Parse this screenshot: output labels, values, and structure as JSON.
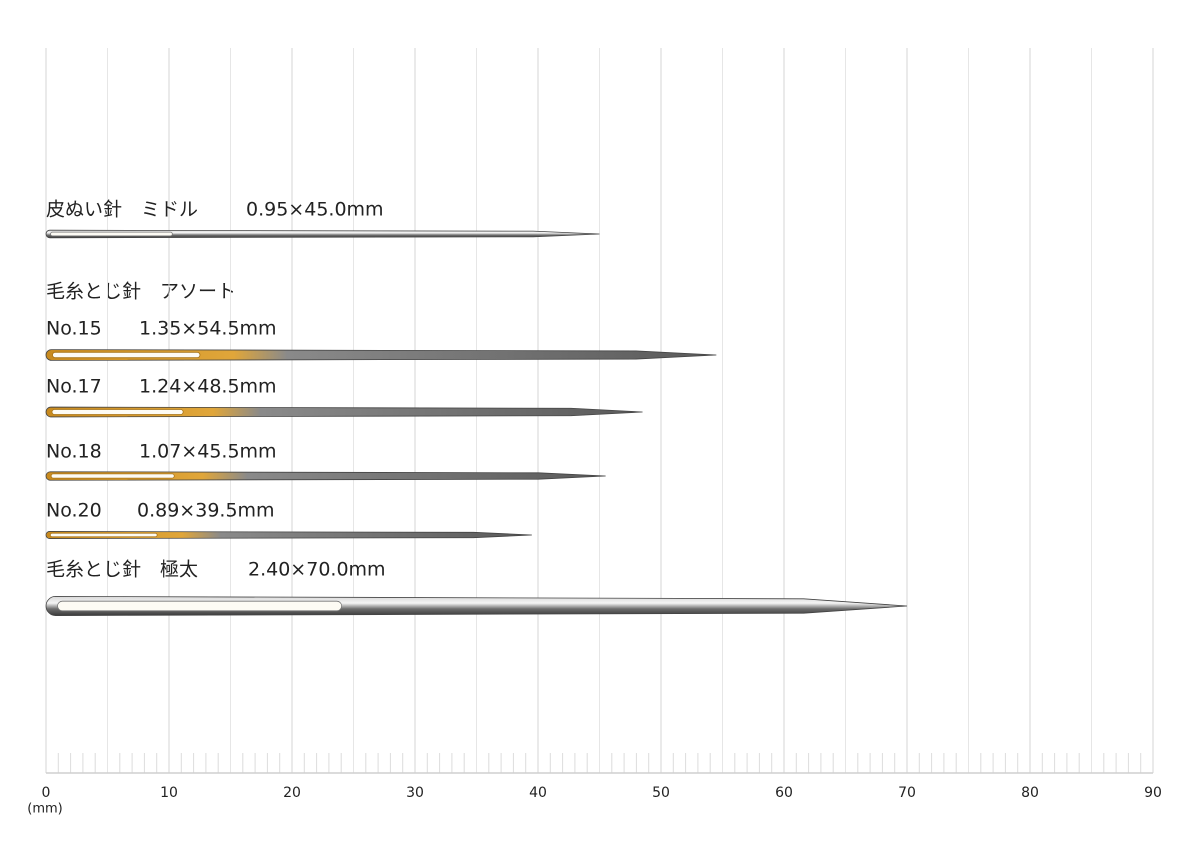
{
  "chart_data": {
    "type": "needle",
    "x_label": "(mm)",
    "xlim": [
      0,
      90
    ],
    "xticks": [
      0,
      10,
      20,
      30,
      40,
      50,
      60,
      70,
      80,
      90
    ],
    "grid": true,
    "group_label": "毛糸とじ針　アソート",
    "needles": [
      {
        "name": "皮ぬい針　ミドル",
        "label": "0.95×45.0mm",
        "diameter": 0.95,
        "length": 45.0,
        "color": "silver"
      },
      {
        "name": "No.15",
        "label": "1.35×54.5mm",
        "diameter": 1.35,
        "length": 54.5,
        "color": "gold"
      },
      {
        "name": "No.17",
        "label": "1.24×48.5mm",
        "diameter": 1.24,
        "length": 48.5,
        "color": "gold"
      },
      {
        "name": "No.18",
        "label": "1.07×45.5mm",
        "diameter": 1.07,
        "length": 45.5,
        "color": "gold"
      },
      {
        "name": "No.20",
        "label": "0.89×39.5mm",
        "diameter": 0.89,
        "length": 39.5,
        "color": "gold"
      },
      {
        "name": "毛糸とじ針　極太",
        "label": "2.40×70.0mm",
        "diameter": 2.4,
        "length": 70.0,
        "color": "silver"
      }
    ]
  }
}
